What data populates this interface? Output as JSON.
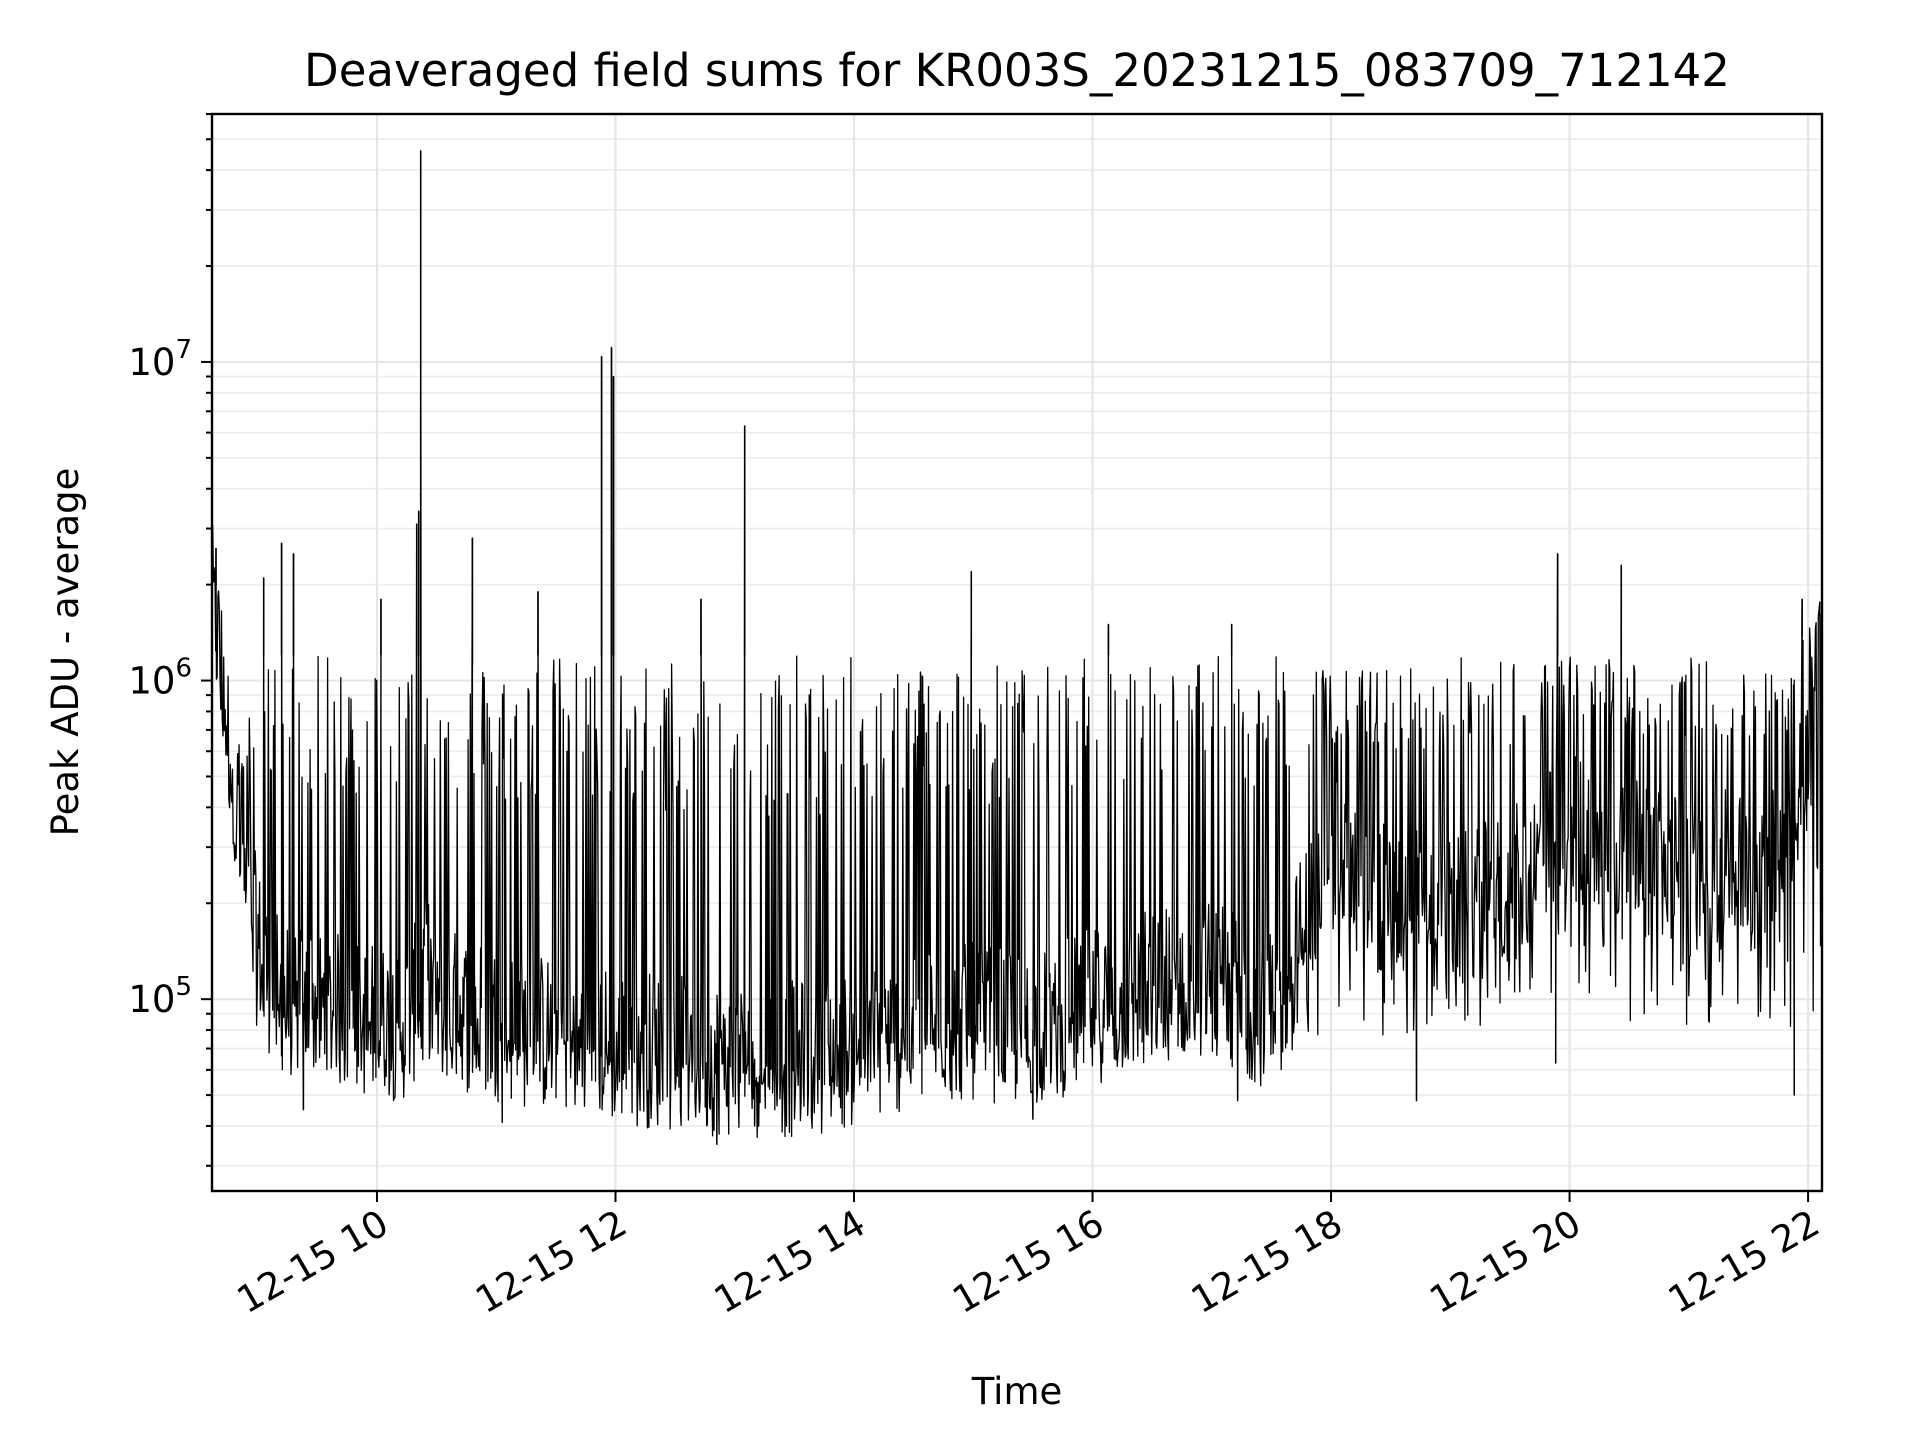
{
  "chart_data": {
    "type": "line",
    "title": "Deaveraged field sums for KR003S_20231215_083709_712142",
    "xlabel": "Time",
    "ylabel": "Peak ADU - average",
    "x_type": "datetime",
    "xlim": [
      "2023-12-15 08:37",
      "2023-12-15 22:07"
    ],
    "ylim": [
      25000,
      60000000
    ],
    "y_scale": "log",
    "grid": true,
    "grid_minor_y": true,
    "line_color": "#000000",
    "x_ticks": [
      {
        "value": "2023-12-15 10:00",
        "label": "12-15 10"
      },
      {
        "value": "2023-12-15 12:00",
        "label": "12-15 12"
      },
      {
        "value": "2023-12-15 14:00",
        "label": "12-15 14"
      },
      {
        "value": "2023-12-15 16:00",
        "label": "12-15 16"
      },
      {
        "value": "2023-12-15 18:00",
        "label": "12-15 18"
      },
      {
        "value": "2023-12-15 20:00",
        "label": "12-15 20"
      },
      {
        "value": "2023-12-15 22:00",
        "label": "12-15 22"
      }
    ],
    "y_ticks": [
      {
        "value": 100000,
        "base": "10",
        "exp": "5"
      },
      {
        "value": 1000000,
        "base": "10",
        "exp": "6"
      },
      {
        "value": 10000000,
        "base": "10",
        "exp": "7"
      }
    ],
    "series": [
      {
        "x": [
          "2023-12-15 08:37",
          "2023-12-15 08:41",
          "2023-12-15 08:45",
          "2023-12-15 08:49",
          "2023-12-15 08:53",
          "2023-12-15 09:00",
          "2023-12-15 09:07",
          "2023-12-15 09:15",
          "2023-12-15 09:30",
          "2023-12-15 09:45",
          "2023-12-15 10:00",
          "2023-12-15 10:15",
          "2023-12-15 10:25",
          "2023-12-15 10:30",
          "2023-12-15 10:45",
          "2023-12-15 11:00",
          "2023-12-15 11:15",
          "2023-12-15 11:30",
          "2023-12-15 11:45",
          "2023-12-15 12:00",
          "2023-12-15 12:30",
          "2023-12-15 13:00",
          "2023-12-15 13:30",
          "2023-12-15 14:00",
          "2023-12-15 14:30",
          "2023-12-15 15:00",
          "2023-12-15 15:30",
          "2023-12-15 16:00",
          "2023-12-15 16:30",
          "2023-12-15 17:00",
          "2023-12-15 17:30",
          "2023-12-15 18:00",
          "2023-12-15 18:30",
          "2023-12-15 19:00",
          "2023-12-15 19:30",
          "2023-12-15 20:00",
          "2023-12-15 20:30",
          "2023-12-15 21:00",
          "2023-12-15 21:30",
          "2023-12-15 21:50",
          "2023-12-15 22:00",
          "2023-12-15 22:07"
        ],
        "baseline": [
          1800000,
          1200000,
          700000,
          450000,
          250000,
          150000,
          110000,
          100000,
          95000,
          90000,
          85000,
          85000,
          120000,
          100000,
          90000,
          85000,
          80000,
          78000,
          75000,
          72000,
          68000,
          65000,
          65000,
          70000,
          80000,
          85000,
          80000,
          95000,
          110000,
          120000,
          90000,
          280000,
          200000,
          180000,
          220000,
          350000,
          280000,
          250000,
          260000,
          350000,
          600000,
          1300000
        ],
        "upper": [
          2200000,
          1800000,
          900000,
          800000,
          600000,
          1200000,
          1200000,
          1200000,
          1200000,
          1200000,
          1200000,
          1200000,
          1200000,
          1000000,
          1100000,
          1200000,
          1200000,
          1200000,
          1200000,
          1200000,
          1200000,
          1200000,
          1200000,
          1200000,
          1200000,
          1200000,
          1100000,
          1200000,
          1200000,
          1200000,
          1200000,
          1100000,
          1100000,
          1200000,
          1200000,
          1200000,
          1200000,
          1200000,
          1100000,
          1100000,
          1500000,
          1800000
        ],
        "lower": [
          1000000,
          700000,
          450000,
          250000,
          120000,
          80000,
          65000,
          60000,
          60000,
          60000,
          55000,
          60000,
          60000,
          58000,
          55000,
          52000,
          50000,
          48000,
          46000,
          45000,
          42000,
          42000,
          45000,
          50000,
          55000,
          55000,
          50000,
          55000,
          60000,
          58000,
          55000,
          70000,
          75000,
          80000,
          85000,
          90000,
          85000,
          80000,
          85000,
          80000,
          70000,
          80000
        ],
        "spikes": [
          {
            "x": "2023-12-15 08:39",
            "y": 2600000
          },
          {
            "x": "2023-12-15 09:03",
            "y": 2100000
          },
          {
            "x": "2023-12-15 09:12",
            "y": 2700000
          },
          {
            "x": "2023-12-15 09:18",
            "y": 2500000
          },
          {
            "x": "2023-12-15 10:02",
            "y": 1800000
          },
          {
            "x": "2023-12-15 10:20",
            "y": 3100000
          },
          {
            "x": "2023-12-15 10:21",
            "y": 3400000
          },
          {
            "x": "2023-12-15 10:22",
            "y": 46000000
          },
          {
            "x": "2023-12-15 10:48",
            "y": 2800000
          },
          {
            "x": "2023-12-15 11:21",
            "y": 1900000
          },
          {
            "x": "2023-12-15 11:53",
            "y": 10400000
          },
          {
            "x": "2023-12-15 11:58",
            "y": 11100000
          },
          {
            "x": "2023-12-15 11:59",
            "y": 9000000
          },
          {
            "x": "2023-12-15 12:43",
            "y": 1800000
          },
          {
            "x": "2023-12-15 13:05",
            "y": 6300000
          },
          {
            "x": "2023-12-15 14:59",
            "y": 2200000
          },
          {
            "x": "2023-12-15 16:08",
            "y": 1500000
          },
          {
            "x": "2023-12-15 17:10",
            "y": 1500000
          },
          {
            "x": "2023-12-15 19:54",
            "y": 2500000
          },
          {
            "x": "2023-12-15 20:26",
            "y": 2300000
          },
          {
            "x": "2023-12-15 21:57",
            "y": 1800000
          }
        ],
        "dips": [
          {
            "x": "2023-12-15 09:23",
            "y": 45000
          },
          {
            "x": "2023-12-15 11:03",
            "y": 41000
          },
          {
            "x": "2023-12-15 12:51",
            "y": 35000
          },
          {
            "x": "2023-12-15 13:10",
            "y": 40000
          },
          {
            "x": "2023-12-15 15:30",
            "y": 42000
          },
          {
            "x": "2023-12-15 17:13",
            "y": 48000
          },
          {
            "x": "2023-12-15 18:43",
            "y": 48000
          },
          {
            "x": "2023-12-15 19:53",
            "y": 63000
          },
          {
            "x": "2023-12-15 21:53",
            "y": 50000
          }
        ]
      }
    ]
  }
}
